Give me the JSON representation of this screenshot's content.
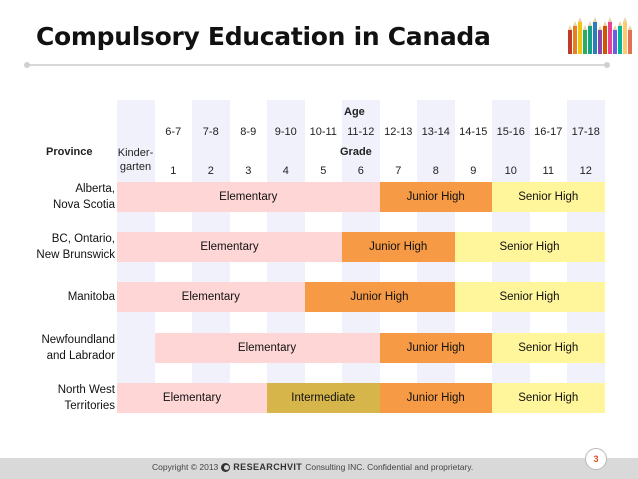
{
  "title": "Compulsory Education in Canada",
  "headers": {
    "age_label": "Age",
    "grade_label": "Grade",
    "province_label": "Province",
    "kindergarten_label": "Kinder-\ngarten",
    "ages": [
      "6-7",
      "7-8",
      "8-9",
      "9-10",
      "10-11",
      "11-12",
      "12-13",
      "13-14",
      "14-15",
      "15-16",
      "16-17",
      "17-18"
    ],
    "grades": [
      "1",
      "2",
      "3",
      "4",
      "5",
      "6",
      "7",
      "8",
      "9",
      "10",
      "11",
      "12"
    ]
  },
  "rows": [
    {
      "province": "Alberta,\nNova Scotia",
      "segments": [
        {
          "label": "Elementary",
          "type": "elementary",
          "from_col": 0,
          "to_col": 7
        },
        {
          "label": "Junior High",
          "type": "junior-high",
          "from_col": 7,
          "to_col": 10
        },
        {
          "label": "Senior High",
          "type": "senior-high",
          "from_col": 10,
          "to_col": 13
        }
      ]
    },
    {
      "province": "BC, Ontario,\nNew Brunswick",
      "segments": [
        {
          "label": "Elementary",
          "type": "elementary",
          "from_col": 0,
          "to_col": 6
        },
        {
          "label": "Junior High",
          "type": "junior-high",
          "from_col": 6,
          "to_col": 9
        },
        {
          "label": "Senior High",
          "type": "senior-high",
          "from_col": 9,
          "to_col": 13
        }
      ]
    },
    {
      "province": "Manitoba",
      "segments": [
        {
          "label": "Elementary",
          "type": "elementary",
          "from_col": 0,
          "to_col": 5
        },
        {
          "label": "Junior High",
          "type": "junior-high",
          "from_col": 5,
          "to_col": 9
        },
        {
          "label": "Senior High",
          "type": "senior-high",
          "from_col": 9,
          "to_col": 13
        }
      ]
    },
    {
      "province": "Newfoundland\nand Labrador",
      "segments": [
        {
          "label": "Elementary",
          "type": "elementary",
          "from_col": 1,
          "to_col": 7
        },
        {
          "label": "Junior High",
          "type": "junior-high",
          "from_col": 7,
          "to_col": 10
        },
        {
          "label": "Senior High",
          "type": "senior-high",
          "from_col": 10,
          "to_col": 13
        }
      ]
    },
    {
      "province": "North West\nTerritories",
      "segments": [
        {
          "label": "Elementary",
          "type": "elementary",
          "from_col": 0,
          "to_col": 4
        },
        {
          "label": "Intermediate",
          "type": "intermediate",
          "from_col": 4,
          "to_col": 7
        },
        {
          "label": "Junior High",
          "type": "junior-high",
          "from_col": 7,
          "to_col": 10
        },
        {
          "label": "Senior High",
          "type": "senior-high",
          "from_col": 10,
          "to_col": 13
        }
      ]
    }
  ],
  "colors": {
    "elementary": "#ffd6d6",
    "junior-high": "#f79a45",
    "senior-high": "#fff59a",
    "intermediate": "#d6b64a"
  },
  "footer": {
    "copyright": "Copyright © 2013",
    "brand": "RESEARCHVIT",
    "suffix": "Consulting INC. Confidential and proprietary.",
    "page_number": "3"
  }
}
